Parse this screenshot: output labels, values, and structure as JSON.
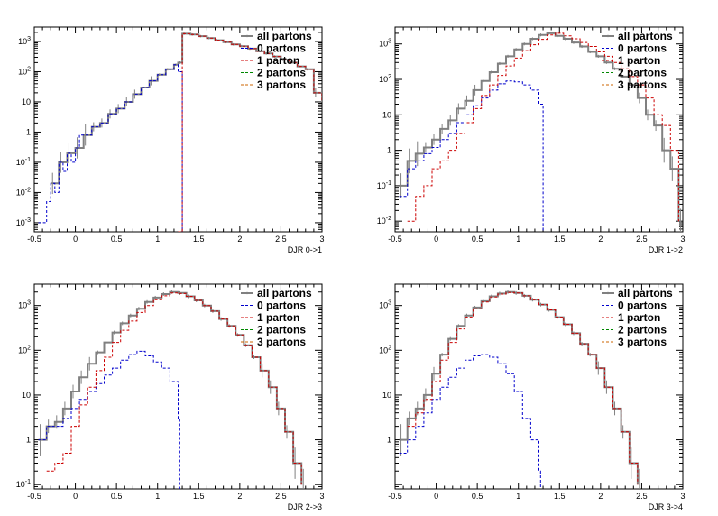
{
  "chart_data": [
    {
      "type": "line",
      "xlabel": "DJR 0->1",
      "xlim": [
        -0.5,
        3
      ],
      "ylim": [
        0.0005,
        3000
      ],
      "yscale": "log",
      "x_ticks": [
        "-0.5",
        "0",
        "0.5",
        "1",
        "1.5",
        "2",
        "2.5",
        "3"
      ],
      "y_ticks": [
        0.001,
        0.01,
        0.1,
        1,
        10,
        100,
        1000
      ],
      "legend_position": "top-right",
      "series": [
        {
          "name": "all partons",
          "color": "#808080",
          "style": "solid",
          "x": [
            -0.3,
            -0.2,
            -0.1,
            0.0,
            0.1,
            0.2,
            0.3,
            0.4,
            0.5,
            0.6,
            0.7,
            0.8,
            0.9,
            1.0,
            1.1,
            1.2,
            1.25,
            1.3,
            1.4,
            1.5,
            1.6,
            1.7,
            1.8,
            1.9,
            2.0,
            2.1,
            2.2,
            2.3,
            2.4,
            2.5,
            2.6,
            2.7,
            2.8,
            2.9,
            3.0
          ],
          "y": [
            0.02,
            0.1,
            0.2,
            0.3,
            0.8,
            1.5,
            2,
            4,
            6,
            10,
            18,
            30,
            50,
            80,
            120,
            170,
            200,
            1800,
            1700,
            1500,
            1300,
            1100,
            950,
            800,
            700,
            580,
            480,
            400,
            320,
            250,
            200,
            150,
            120,
            20,
            10
          ]
        },
        {
          "name": "0 partons",
          "color": "#0000cc",
          "style": "dashed",
          "x": [
            -0.45,
            -0.35,
            -0.3,
            -0.25,
            -0.2,
            -0.15,
            -0.1,
            -0.05,
            0.0,
            0.05,
            0.1,
            0.2,
            0.3,
            0.4,
            0.5,
            0.6,
            0.7,
            0.8,
            0.9,
            1.0,
            1.1,
            1.2,
            1.25,
            1.3
          ],
          "y": [
            0.001,
            0.005,
            0.02,
            0.01,
            0.1,
            0.05,
            0.2,
            0.1,
            0.3,
            0.8,
            0.8,
            1.5,
            2,
            4,
            6,
            10,
            18,
            30,
            50,
            80,
            120,
            170,
            100,
            0
          ]
        },
        {
          "name": "1 parton",
          "color": "#cc0000",
          "style": "dashed",
          "x": [
            1.25,
            1.3,
            1.4,
            1.5,
            1.6,
            1.7,
            1.8,
            1.9,
            2.0,
            2.1,
            2.2,
            2.3,
            2.4,
            2.5,
            2.6,
            2.7,
            2.8,
            2.9,
            3.0
          ],
          "y": [
            0.0005,
            1800,
            1700,
            1500,
            1300,
            1100,
            950,
            800,
            700,
            580,
            480,
            400,
            320,
            250,
            200,
            150,
            120,
            20,
            10
          ]
        },
        {
          "name": "2 partons",
          "color": "#008800",
          "style": "dashed",
          "x": [],
          "y": []
        },
        {
          "name": "3 partons",
          "color": "#cc6600",
          "style": "dashed",
          "x": [],
          "y": []
        }
      ]
    },
    {
      "type": "line",
      "xlabel": "DJR 1->2",
      "xlim": [
        -0.5,
        3
      ],
      "ylim": [
        0.005,
        3000
      ],
      "yscale": "log",
      "x_ticks": [
        "-0.5",
        "0",
        "0.5",
        "1",
        "1.5",
        "2",
        "2.5",
        "3"
      ],
      "y_ticks": [
        0.01,
        0.1,
        1,
        10,
        100,
        1000
      ],
      "legend_position": "top-right",
      "series": [
        {
          "name": "all partons",
          "color": "#808080",
          "style": "solid",
          "x": [
            -0.45,
            -0.35,
            -0.25,
            -0.15,
            -0.05,
            0.05,
            0.15,
            0.25,
            0.35,
            0.45,
            0.55,
            0.65,
            0.75,
            0.85,
            0.95,
            1.05,
            1.15,
            1.25,
            1.35,
            1.45,
            1.55,
            1.65,
            1.75,
            1.85,
            1.95,
            2.05,
            2.15,
            2.25,
            2.35,
            2.45,
            2.55,
            2.65,
            2.75,
            2.85,
            2.95
          ],
          "y": [
            0.1,
            0.5,
            0.8,
            1.2,
            2,
            4,
            7,
            15,
            25,
            50,
            90,
            160,
            280,
            450,
            700,
            1000,
            1400,
            1800,
            2000,
            1700,
            1400,
            1100,
            850,
            600,
            450,
            300,
            200,
            120,
            70,
            30,
            10,
            5,
            1,
            0.3,
            0.01
          ]
        },
        {
          "name": "0 partons",
          "color": "#0000cc",
          "style": "dashed",
          "x": [
            -0.45,
            -0.35,
            -0.25,
            -0.15,
            -0.05,
            0.05,
            0.15,
            0.25,
            0.35,
            0.45,
            0.55,
            0.65,
            0.75,
            0.85,
            0.95,
            1.05,
            1.15,
            1.25,
            1.3
          ],
          "y": [
            0.05,
            0.3,
            0.5,
            0.8,
            1.2,
            2,
            3,
            6,
            10,
            18,
            30,
            50,
            75,
            90,
            85,
            70,
            50,
            20,
            0
          ]
        },
        {
          "name": "1 parton",
          "color": "#cc0000",
          "style": "dashed",
          "x": [
            -0.35,
            -0.25,
            -0.15,
            -0.05,
            0.05,
            0.15,
            0.25,
            0.35,
            0.45,
            0.55,
            0.65,
            0.75,
            0.85,
            0.95,
            1.05,
            1.15,
            1.25,
            1.35,
            1.45,
            1.55,
            1.65,
            1.75,
            1.85,
            1.95,
            2.05,
            2.15,
            2.25,
            2.35,
            2.45,
            2.55,
            2.65,
            2.75,
            2.85,
            2.95
          ],
          "y": [
            0.01,
            0.05,
            0.1,
            0.3,
            0.5,
            1,
            3,
            6,
            15,
            35,
            70,
            130,
            240,
            400,
            650,
            950,
            1350,
            1800,
            2000,
            1700,
            1400,
            1100,
            850,
            600,
            450,
            300,
            200,
            120,
            70,
            30,
            10,
            5,
            1,
            0.01
          ]
        },
        {
          "name": "2 partons",
          "color": "#008800",
          "style": "dashed",
          "x": [],
          "y": []
        },
        {
          "name": "3 partons",
          "color": "#cc6600",
          "style": "dashed",
          "x": [],
          "y": []
        }
      ]
    },
    {
      "type": "line",
      "xlabel": "DJR 2->3",
      "xlim": [
        -0.5,
        3
      ],
      "ylim": [
        0.08,
        3000
      ],
      "yscale": "log",
      "x_ticks": [
        "-0.5",
        "0",
        "0.5",
        "1",
        "1.5",
        "2",
        "2.5",
        "3"
      ],
      "y_ticks": [
        0.1,
        1,
        10,
        100,
        1000
      ],
      "legend_position": "top-right",
      "series": [
        {
          "name": "all partons",
          "color": "#808080",
          "style": "solid",
          "x": [
            -0.45,
            -0.35,
            -0.25,
            -0.15,
            -0.05,
            0.05,
            0.15,
            0.25,
            0.35,
            0.45,
            0.55,
            0.65,
            0.75,
            0.85,
            0.95,
            1.05,
            1.15,
            1.25,
            1.35,
            1.45,
            1.55,
            1.65,
            1.75,
            1.85,
            1.95,
            2.05,
            2.15,
            2.25,
            2.35,
            2.45,
            2.55,
            2.65,
            2.75
          ],
          "y": [
            1,
            2,
            2.5,
            5,
            12,
            25,
            50,
            90,
            150,
            250,
            400,
            600,
            850,
            1200,
            1500,
            1800,
            2000,
            1900,
            1600,
            1300,
            1000,
            750,
            500,
            350,
            220,
            130,
            70,
            35,
            15,
            5,
            1.5,
            0.3,
            0.1
          ]
        },
        {
          "name": "0 partons",
          "color": "#0000cc",
          "style": "dashed",
          "x": [
            -0.45,
            -0.35,
            -0.25,
            -0.15,
            -0.05,
            0.05,
            0.15,
            0.25,
            0.35,
            0.45,
            0.55,
            0.65,
            0.75,
            0.85,
            0.95,
            1.05,
            1.15,
            1.25,
            1.27
          ],
          "y": [
            1,
            2,
            2,
            3,
            5,
            8,
            12,
            18,
            28,
            40,
            60,
            80,
            95,
            75,
            55,
            40,
            20,
            3,
            0
          ]
        },
        {
          "name": "1 parton",
          "color": "#cc0000",
          "style": "dashed",
          "x": [
            -0.35,
            -0.25,
            -0.15,
            -0.05,
            0.05,
            0.15,
            0.25,
            0.35,
            0.45,
            0.55,
            0.65,
            0.75,
            0.85,
            0.95,
            1.05,
            1.15,
            1.25,
            1.35,
            1.45,
            1.55,
            1.65,
            1.75,
            1.85,
            1.95,
            2.05,
            2.15,
            2.25,
            2.35,
            2.45,
            2.55,
            2.65,
            2.75
          ],
          "y": [
            0.2,
            0.3,
            0.5,
            2,
            6,
            15,
            35,
            70,
            150,
            280,
            450,
            700,
            1000,
            1350,
            1650,
            1900,
            1850,
            1600,
            1300,
            1000,
            750,
            500,
            350,
            220,
            130,
            70,
            35,
            15,
            5,
            1.5,
            0.3,
            0.1
          ]
        },
        {
          "name": "2 partons",
          "color": "#008800",
          "style": "dashed",
          "x": [],
          "y": []
        },
        {
          "name": "3 partons",
          "color": "#cc6600",
          "style": "dashed",
          "x": [],
          "y": []
        }
      ]
    },
    {
      "type": "line",
      "xlabel": "DJR 3->4",
      "xlim": [
        -0.5,
        3
      ],
      "ylim": [
        0.08,
        3000
      ],
      "yscale": "log",
      "x_ticks": [
        "-0.5",
        "0",
        "0.5",
        "1",
        "1.5",
        "2",
        "2.5",
        "3"
      ],
      "y_ticks": [
        1,
        10,
        100,
        1000
      ],
      "legend_position": "top-right",
      "series": [
        {
          "name": "all partons",
          "color": "#808080",
          "style": "solid",
          "x": [
            -0.45,
            -0.35,
            -0.25,
            -0.15,
            -0.05,
            0.05,
            0.15,
            0.25,
            0.35,
            0.45,
            0.55,
            0.65,
            0.75,
            0.85,
            0.95,
            1.05,
            1.15,
            1.25,
            1.35,
            1.45,
            1.55,
            1.65,
            1.75,
            1.85,
            1.95,
            2.05,
            2.15,
            2.25,
            2.35,
            2.45
          ],
          "y": [
            1,
            3,
            5,
            10,
            30,
            80,
            180,
            350,
            600,
            900,
            1250,
            1600,
            1850,
            2000,
            1900,
            1650,
            1350,
            1050,
            800,
            550,
            380,
            240,
            140,
            80,
            40,
            15,
            5,
            1.5,
            0.3,
            0.1
          ]
        },
        {
          "name": "0 partons",
          "color": "#0000cc",
          "style": "dashed",
          "x": [
            -0.45,
            -0.35,
            -0.25,
            -0.15,
            -0.05,
            0.05,
            0.15,
            0.25,
            0.35,
            0.45,
            0.55,
            0.65,
            0.75,
            0.85,
            0.95,
            1.05,
            1.15,
            1.25,
            1.27
          ],
          "y": [
            0.5,
            1,
            2,
            4,
            8,
            15,
            25,
            40,
            60,
            75,
            80,
            70,
            50,
            30,
            12,
            3,
            1,
            0.2,
            0
          ]
        },
        {
          "name": "1 parton",
          "color": "#cc0000",
          "style": "dashed",
          "x": [
            -0.35,
            -0.25,
            -0.15,
            -0.05,
            0.05,
            0.15,
            0.25,
            0.35,
            0.45,
            0.55,
            0.65,
            0.75,
            0.85,
            0.95,
            1.05,
            1.15,
            1.25,
            1.35,
            1.45,
            1.55,
            1.65,
            1.75,
            1.85,
            1.95,
            2.05,
            2.15,
            2.25,
            2.35,
            2.45
          ],
          "y": [
            2,
            4,
            8,
            20,
            60,
            150,
            300,
            550,
            850,
            1200,
            1550,
            1800,
            1950,
            1900,
            1650,
            1350,
            1050,
            800,
            550,
            380,
            240,
            140,
            80,
            40,
            15,
            5,
            1.5,
            0.3,
            0.1
          ]
        },
        {
          "name": "2 partons",
          "color": "#008800",
          "style": "dashed",
          "x": [],
          "y": []
        },
        {
          "name": "3 partons",
          "color": "#cc6600",
          "style": "dashed",
          "x": [],
          "y": []
        }
      ]
    }
  ]
}
